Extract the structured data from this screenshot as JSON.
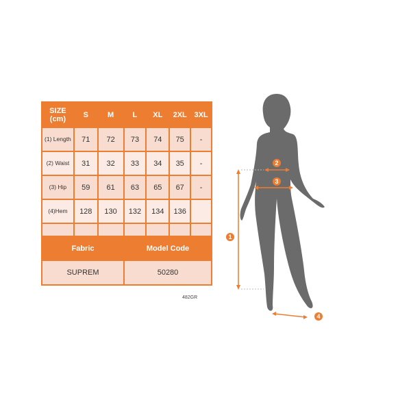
{
  "table": {
    "header": [
      "SIZE\n(cm)",
      "S",
      "M",
      "L",
      "XL",
      "2XL",
      "3XL"
    ],
    "header_title": "SIZE (cm)",
    "rows": [
      {
        "label": "(1) Length",
        "values": [
          "71",
          "72",
          "73",
          "74",
          "75",
          "-"
        ]
      },
      {
        "label": "(2) Waist",
        "values": [
          "31",
          "32",
          "33",
          "34",
          "35",
          "-"
        ]
      },
      {
        "label": "(3) Hip",
        "values": [
          "59",
          "61",
          "63",
          "65",
          "67",
          "-"
        ]
      },
      {
        "label": "(4)Hem",
        "values": [
          "128",
          "130",
          "132",
          "134",
          "136",
          ""
        ]
      }
    ],
    "fabric_label": "Fabric",
    "fabric_value": "SUPREM",
    "model_code_label": "Model Code",
    "model_code_value": "50280"
  },
  "product_code": "482GR",
  "figure": {
    "markers": [
      "1",
      "2",
      "3",
      "4"
    ]
  },
  "colors": {
    "accent": "#ec7d31",
    "silhouette": "#6b6b6b"
  }
}
